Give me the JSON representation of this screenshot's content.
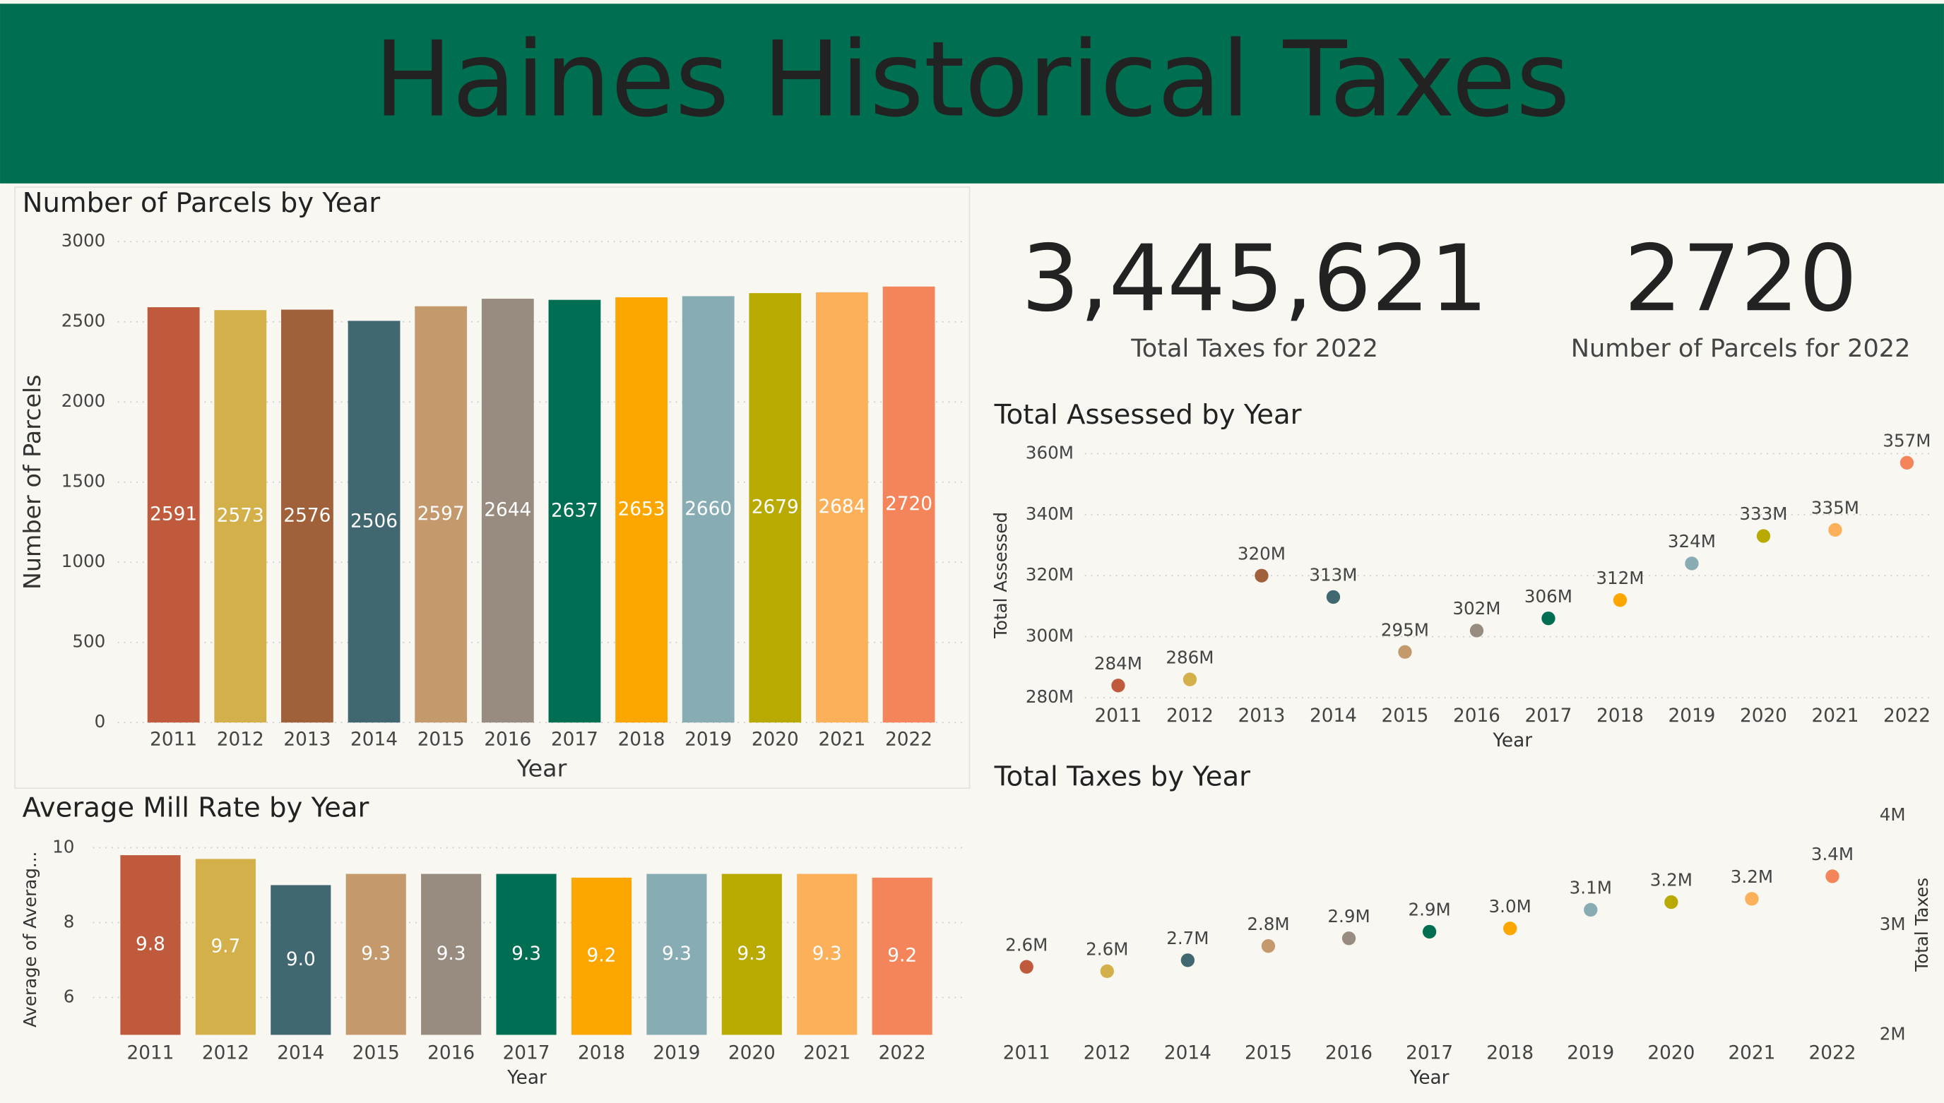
{
  "header": {
    "title": "Haines Historical Taxes"
  },
  "cards": [
    {
      "value": "3,445,621",
      "label": "Total Taxes for 2022"
    },
    {
      "value": "2720",
      "label": "Number of Parcels for 2022"
    }
  ],
  "chart_data": [
    {
      "type": "bar",
      "title": "Number of Parcels by Year",
      "x_label": "Year",
      "y_label": "Number of Parcels",
      "categories": [
        "2011",
        "2012",
        "2013",
        "2014",
        "2015",
        "2016",
        "2017",
        "2018",
        "2019",
        "2020",
        "2021",
        "2022"
      ],
      "values": [
        2591,
        2573,
        2576,
        2506,
        2597,
        2644,
        2637,
        2653,
        2660,
        2679,
        2684,
        2720
      ],
      "colors": [
        "#c05a3c",
        "#d4b04a",
        "#a0603a",
        "#416770",
        "#c49a6c",
        "#988c80",
        "#006e52",
        "#fda600",
        "#88acb4",
        "#b8aa00",
        "#fdb05a",
        "#f4845a"
      ],
      "ylim": [
        0,
        3000
      ],
      "yticks": [
        0,
        500,
        1000,
        1500,
        2000,
        2500,
        3000
      ],
      "grid": true
    },
    {
      "type": "scatter",
      "title": "Total Assessed by Year",
      "x_label": "Year",
      "y_label": "Total Assessed",
      "categories": [
        "2011",
        "2012",
        "2013",
        "2014",
        "2015",
        "2016",
        "2017",
        "2018",
        "2019",
        "2020",
        "2021",
        "2022"
      ],
      "values": [
        284000000,
        286000000,
        320000000,
        313000000,
        295000000,
        302000000,
        306000000,
        312000000,
        324000000,
        333000000,
        335000000,
        357000000
      ],
      "value_labels": [
        "284M",
        "286M",
        "320M",
        "313M",
        "295M",
        "302M",
        "306M",
        "312M",
        "324M",
        "333M",
        "335M",
        "357M"
      ],
      "colors": [
        "#c05a3c",
        "#d4b04a",
        "#a0603a",
        "#416770",
        "#c49a6c",
        "#988c80",
        "#006e52",
        "#fda600",
        "#88acb4",
        "#b8aa00",
        "#fdb05a",
        "#f4845a"
      ],
      "ylim": [
        280000000,
        360000000
      ],
      "yticks": [
        {
          "value": 280000000,
          "label": "280M"
        },
        {
          "value": 300000000,
          "label": "300M"
        },
        {
          "value": 320000000,
          "label": "320M"
        },
        {
          "value": 340000000,
          "label": "340M"
        },
        {
          "value": 360000000,
          "label": "360M"
        }
      ],
      "grid": true,
      "y_axis_side": "left"
    },
    {
      "type": "bar",
      "title": "Average Mill Rate by Year",
      "x_label": "Year",
      "y_label": "Average of Averag...",
      "categories": [
        "2011",
        "2012",
        "2014",
        "2015",
        "2016",
        "2017",
        "2018",
        "2019",
        "2020",
        "2021",
        "2022"
      ],
      "values": [
        9.8,
        9.7,
        9.0,
        9.3,
        9.3,
        9.3,
        9.2,
        9.3,
        9.3,
        9.3,
        9.2
      ],
      "value_labels": [
        "9.8",
        "9.7",
        "9.0",
        "9.3",
        "9.3",
        "9.3",
        "9.2",
        "9.3",
        "9.3",
        "9.3",
        "9.2"
      ],
      "colors": [
        "#c05a3c",
        "#d4b04a",
        "#416770",
        "#c49a6c",
        "#988c80",
        "#006e52",
        "#fda600",
        "#88acb4",
        "#b8aa00",
        "#fdb05a",
        "#f4845a"
      ],
      "ylim": [
        5,
        10
      ],
      "yticks": [
        6,
        8,
        10
      ],
      "grid": true
    },
    {
      "type": "scatter",
      "title": "Total Taxes by Year",
      "x_label": "Year",
      "y_label": "Total Taxes",
      "categories": [
        "2011",
        "2012",
        "2014",
        "2015",
        "2016",
        "2017",
        "2018",
        "2019",
        "2020",
        "2021",
        "2022"
      ],
      "values": [
        2620000,
        2580000,
        2680000,
        2810000,
        2880000,
        2940000,
        2970000,
        3140000,
        3210000,
        3240000,
        3445621
      ],
      "value_labels": [
        "2.6M",
        "2.6M",
        "2.7M",
        "2.8M",
        "2.9M",
        "2.9M",
        "3.0M",
        "3.1M",
        "3.2M",
        "3.2M",
        "3.4M"
      ],
      "colors": [
        "#c05a3c",
        "#d4b04a",
        "#416770",
        "#c49a6c",
        "#988c80",
        "#006e52",
        "#fda600",
        "#88acb4",
        "#b8aa00",
        "#fdb05a",
        "#f4845a"
      ],
      "ylim": [
        2000000,
        4000000
      ],
      "yticks": [
        {
          "value": 2000000,
          "label": "2M"
        },
        {
          "value": 3000000,
          "label": "3M"
        },
        {
          "value": 4000000,
          "label": "4M"
        }
      ],
      "grid": false,
      "y_axis_side": "right"
    }
  ]
}
